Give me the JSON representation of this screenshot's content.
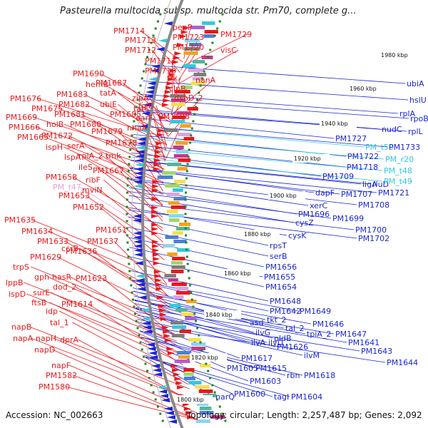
{
  "title": "Pasteurella multocida subsp. multocida str. Pm70, complete g...",
  "accession": "Accession: NC_002663",
  "topology": "Topology: circular; Length: 2,257,487 bp; Genes: 2,092",
  "colors": {
    "forward": "#e8191c",
    "reverse": "#1b25d6",
    "trna": "#33c9dd",
    "misc": "#e8a1d6",
    "backbone": "#8a8a8a",
    "ticks": "#1c8a1c"
  },
  "scale_labels": [
    "1800 kbp",
    "1820 kbp",
    "1840 kbp",
    "1860 kbp",
    "1880 kbp",
    "1900 kbp",
    "1920 kbp",
    "1940 kbp",
    "1960 kbp",
    "1980 kbp"
  ],
  "left_labels": [
    {
      "text": "PM1714",
      "style": "forward"
    },
    {
      "text": "pepP",
      "style": "forward"
    },
    {
      "text": "PM1729",
      "style": "forward"
    },
    {
      "text": "PM1713",
      "style": "forward"
    },
    {
      "text": "PM1723",
      "style": "forward"
    },
    {
      "text": "PM1712",
      "style": "forward"
    },
    {
      "text": "PM1720",
      "style": "forward"
    },
    {
      "text": "visC",
      "style": "forward"
    },
    {
      "text": "PM1711",
      "style": "forward"
    },
    {
      "text": "nanA",
      "style": "forward"
    },
    {
      "text": "PM1710",
      "style": "forward"
    },
    {
      "text": "trx",
      "style": "forward"
    },
    {
      "text": "clpB",
      "style": "forward"
    },
    {
      "text": "PM1690",
      "style": "forward"
    },
    {
      "text": "PM1687",
      "style": "forward"
    },
    {
      "text": "hemB",
      "style": "forward"
    },
    {
      "text": "tatA",
      "style": "forward"
    },
    {
      "text": "zipA",
      "style": "forward"
    },
    {
      "text": "dsbD_2",
      "style": "forward"
    },
    {
      "text": "PM1683",
      "style": "forward"
    },
    {
      "text": "PM1676",
      "style": "forward"
    },
    {
      "text": "ubiE",
      "style": "forward"
    },
    {
      "text": "PM1682",
      "style": "forward"
    },
    {
      "text": "folB",
      "style": "forward"
    },
    {
      "text": "PM1675",
      "style": "forward"
    },
    {
      "text": "tatC",
      "style": "forward"
    },
    {
      "text": "PM1669",
      "style": "forward"
    },
    {
      "text": "PM1681",
      "style": "forward"
    },
    {
      "text": "PM1685",
      "style": "forward"
    },
    {
      "text": "aarF",
      "style": "forward"
    },
    {
      "text": "PM1698",
      "style": "forward"
    },
    {
      "text": "PM1666",
      "style": "forward"
    },
    {
      "text": "holB",
      "style": "forward"
    },
    {
      "text": "PM1680",
      "style": "forward"
    },
    {
      "text": "nhaA",
      "style": "forward"
    },
    {
      "text": "PM1665",
      "style": "forward"
    },
    {
      "text": "PM1672",
      "style": "forward"
    },
    {
      "text": "PM1679",
      "style": "forward"
    },
    {
      "text": "ispH",
      "style": "forward"
    },
    {
      "text": "serA",
      "style": "forward"
    },
    {
      "text": "PM1678",
      "style": "forward"
    },
    {
      "text": "lspA",
      "style": "forward"
    },
    {
      "text": "rpiA_2",
      "style": "forward"
    },
    {
      "text": "tmk",
      "style": "forward"
    },
    {
      "text": "ileS",
      "style": "forward"
    },
    {
      "text": "PM1667",
      "style": "forward"
    },
    {
      "text": "PM1658",
      "style": "forward"
    },
    {
      "text": "ribF",
      "style": "forward"
    },
    {
      "text": "PM_t47",
      "style": "misc"
    },
    {
      "text": "mviN",
      "style": "forward"
    },
    {
      "text": "PM1653",
      "style": "forward"
    },
    {
      "text": "PM1652",
      "style": "forward"
    },
    {
      "text": "PM1635",
      "style": "forward"
    },
    {
      "text": "PM1634",
      "style": "forward"
    },
    {
      "text": "PM1651",
      "style": "forward"
    },
    {
      "text": "PM1633",
      "style": "forward"
    },
    {
      "text": "PM1637",
      "style": "forward"
    },
    {
      "text": "PM1629",
      "style": "forward"
    },
    {
      "text": "ccrB",
      "style": "forward"
    },
    {
      "text": "PM1636",
      "style": "forward"
    },
    {
      "text": "trpS",
      "style": "forward"
    },
    {
      "text": "gph",
      "style": "forward"
    },
    {
      "text": "hasR",
      "style": "forward"
    },
    {
      "text": "PM1623",
      "style": "forward"
    },
    {
      "text": "lppB",
      "style": "forward"
    },
    {
      "text": "dod_2",
      "style": "forward"
    },
    {
      "text": "ispD",
      "style": "forward"
    },
    {
      "text": "surE",
      "style": "forward"
    },
    {
      "text": "ftsB",
      "style": "forward"
    },
    {
      "text": "PM1614",
      "style": "forward"
    },
    {
      "text": "idp",
      "style": "forward"
    },
    {
      "text": "tal_1",
      "style": "forward"
    },
    {
      "text": "napB",
      "style": "forward"
    },
    {
      "text": "napA",
      "style": "forward"
    },
    {
      "text": "napH",
      "style": "forward"
    },
    {
      "text": "dprA",
      "style": "forward"
    },
    {
      "text": "napD",
      "style": "forward"
    },
    {
      "text": "napF",
      "style": "forward"
    },
    {
      "text": "PM1582",
      "style": "forward"
    },
    {
      "text": "PM1580",
      "style": "forward"
    }
  ],
  "right_labels": [
    {
      "text": "ubiA",
      "style": "reverse"
    },
    {
      "text": "hslU",
      "style": "reverse"
    },
    {
      "text": "rplA",
      "style": "reverse"
    },
    {
      "text": "rpoB",
      "style": "reverse"
    },
    {
      "text": "nudC",
      "style": "reverse"
    },
    {
      "text": "rplL",
      "style": "reverse"
    },
    {
      "text": "PM1727",
      "style": "reverse"
    },
    {
      "text": "PM_t50",
      "style": "trna"
    },
    {
      "text": "PM1733",
      "style": "reverse"
    },
    {
      "text": "PM1722",
      "style": "reverse"
    },
    {
      "text": "PM_r20",
      "style": "trna"
    },
    {
      "text": "PM1718",
      "style": "reverse"
    },
    {
      "text": "PM_t48",
      "style": "trna"
    },
    {
      "text": "PM1709",
      "style": "reverse"
    },
    {
      "text": "ligA",
      "style": "reverse"
    },
    {
      "text": "rluD",
      "style": "reverse"
    },
    {
      "text": "PM_t49",
      "style": "trna"
    },
    {
      "text": "PM1721",
      "style": "reverse"
    },
    {
      "text": "dapF",
      "style": "reverse"
    },
    {
      "text": "PM1707",
      "style": "reverse"
    },
    {
      "text": "xerC",
      "style": "reverse"
    },
    {
      "text": "PM1708",
      "style": "reverse"
    },
    {
      "text": "PM1696",
      "style": "reverse"
    },
    {
      "text": "PM1699",
      "style": "reverse"
    },
    {
      "text": "cysZ",
      "style": "reverse"
    },
    {
      "text": "PM1700",
      "style": "reverse"
    },
    {
      "text": "cysK",
      "style": "reverse"
    },
    {
      "text": "PM1702",
      "style": "reverse"
    },
    {
      "text": "rpsT",
      "style": "reverse"
    },
    {
      "text": "serB",
      "style": "reverse"
    },
    {
      "text": "PM1656",
      "style": "reverse"
    },
    {
      "text": "PM1655",
      "style": "reverse"
    },
    {
      "text": "PM1654",
      "style": "reverse"
    },
    {
      "text": "PM1648",
      "style": "reverse"
    },
    {
      "text": "PM1642",
      "style": "reverse"
    },
    {
      "text": "PM1649",
      "style": "reverse"
    },
    {
      "text": "asd",
      "style": "reverse"
    },
    {
      "text": "tkt_2",
      "style": "reverse"
    },
    {
      "text": "tal_2",
      "style": "reverse"
    },
    {
      "text": "PM1646",
      "style": "reverse"
    },
    {
      "text": "ilvG",
      "style": "reverse"
    },
    {
      "text": "tpiA_2",
      "style": "reverse"
    },
    {
      "text": "PM1647",
      "style": "reverse"
    },
    {
      "text": "ilvA",
      "style": "reverse"
    },
    {
      "text": "ilvD",
      "style": "reverse"
    },
    {
      "text": "pldB",
      "style": "reverse"
    },
    {
      "text": "PM1641",
      "style": "reverse"
    },
    {
      "text": "PM1626",
      "style": "reverse"
    },
    {
      "text": "PM1643",
      "style": "reverse"
    },
    {
      "text": "ilvM",
      "style": "reverse"
    },
    {
      "text": "PM1617",
      "style": "reverse"
    },
    {
      "text": "PM1644",
      "style": "reverse"
    },
    {
      "text": "PM1605",
      "style": "reverse"
    },
    {
      "text": "PM1615",
      "style": "reverse"
    },
    {
      "text": "rbn",
      "style": "reverse"
    },
    {
      "text": "PM1618",
      "style": "reverse"
    },
    {
      "text": "PM1603",
      "style": "reverse"
    },
    {
      "text": "PM1600",
      "style": "reverse"
    },
    {
      "text": "narQ",
      "style": "reverse"
    },
    {
      "text": "tagI",
      "style": "reverse"
    },
    {
      "text": "PM1604",
      "style": "reverse"
    }
  ]
}
